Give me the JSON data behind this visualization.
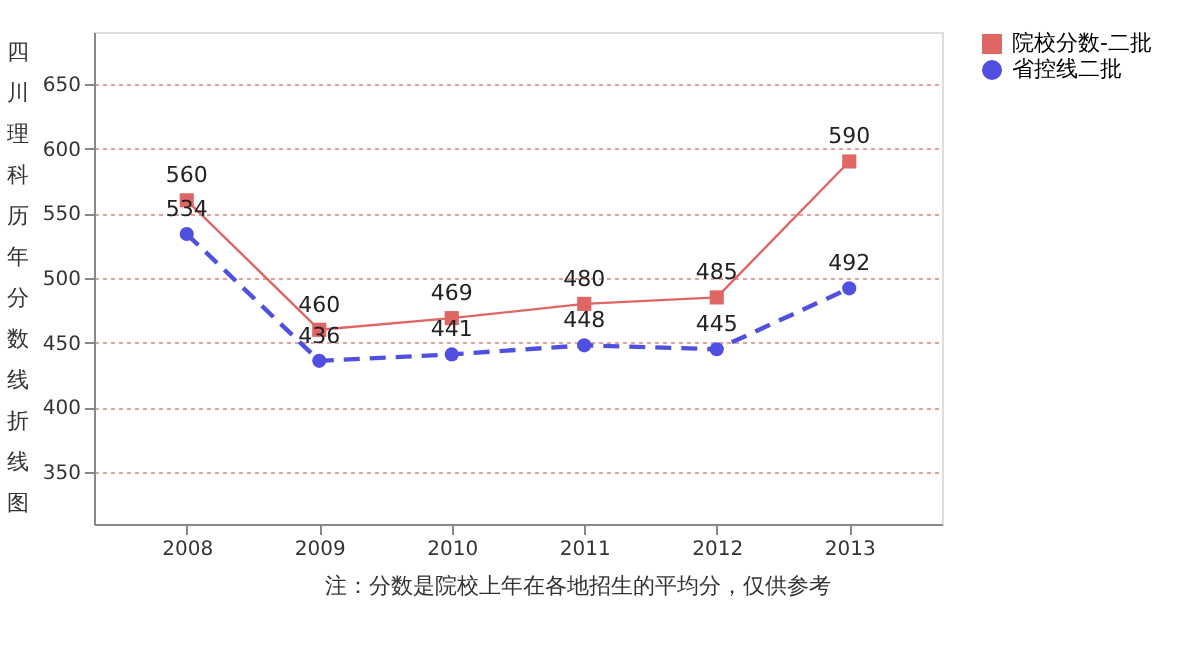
{
  "chart_data": {
    "type": "line",
    "ylabel": "四川理科历年分数线折线图",
    "annotations": [
      "注：分数是院校上年在各地招生的平均分，仅供参考"
    ],
    "categories": [
      "2008",
      "2009",
      "2010",
      "2011",
      "2012",
      "2013"
    ],
    "series": [
      {
        "name": "院校分数-二批",
        "color": "#e06666",
        "values": [
          560,
          460,
          469,
          480,
          485,
          590
        ],
        "marker": "square",
        "line_style": "solid"
      },
      {
        "name": "省控线二批",
        "color": "#5050e0",
        "values": [
          534,
          436,
          441,
          448,
          445,
          492
        ],
        "marker": "circle",
        "line_style": "dashed"
      }
    ],
    "ylim": [
      310,
      690
    ],
    "yticks": [
      350,
      400,
      450,
      500,
      550,
      600,
      650
    ],
    "grid": "y",
    "legend": "right",
    "data_labels": true
  }
}
